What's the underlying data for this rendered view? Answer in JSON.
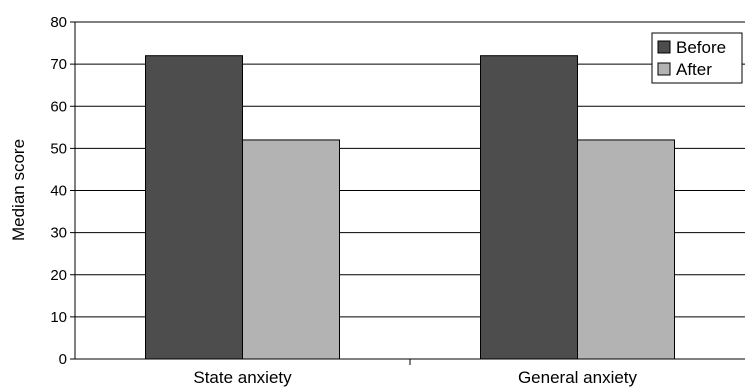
{
  "chart_data": {
    "type": "bar",
    "categories": [
      "State anxiety",
      "General anxiety"
    ],
    "series": [
      {
        "name": "Before",
        "values": [
          72,
          72
        ],
        "color": "#4d4d4d"
      },
      {
        "name": "After",
        "values": [
          52,
          52
        ],
        "color": "#b3b3b3"
      }
    ],
    "ylabel": "Median score",
    "ylim": [
      0,
      80
    ],
    "yticks": [
      0,
      10,
      20,
      30,
      40,
      50,
      60,
      70,
      80
    ],
    "grid": true,
    "legend": "top-right"
  }
}
